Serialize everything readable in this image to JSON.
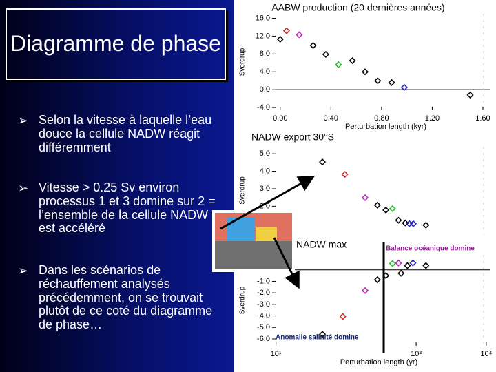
{
  "slide": {
    "title": "Diagramme de phase",
    "bullets": [
      "Selon la vitesse à laquelle l’eau douce la cellule NADW réagit différemment",
      "Vitesse > 0.25 Sv environ processus 1 et 3 domine sur 2 = l’ensemble de la cellule NADW est accéléré",
      "Dans les scénarios de réchauffement analysés précédemment, on se trouvait plutôt de ce coté du diagramme de phase…"
    ]
  },
  "chart_data": [
    {
      "type": "scatter",
      "title": "AABW production (20 dernières années)",
      "x_label": "Perturbation length (kyr)",
      "y_label": "Sverdrup",
      "x": [
        0.0,
        0.05,
        0.15,
        0.26,
        0.36,
        0.46,
        0.57,
        0.67,
        0.77,
        0.88,
        0.98,
        1.5
      ],
      "values": [
        11.3,
        13.2,
        12.3,
        9.9,
        7.9,
        5.6,
        6.5,
        4.0,
        2.0,
        1.6,
        0.5,
        -1.2
      ],
      "colors": [
        "#000",
        "#d02020",
        "#c020c0",
        "#000",
        "#000",
        "#20c020",
        "#000",
        "#000",
        "#000",
        "#000",
        "#2020c0",
        "#000"
      ],
      "xlim": [
        -0.2,
        1.66
      ],
      "ylim": [
        -4.6,
        17
      ],
      "xticks": [
        {
          "value": 0,
          "label": "0.00"
        },
        {
          "value": 0.4,
          "label": "0.40"
        },
        {
          "value": 0.8,
          "label": "0.80"
        },
        {
          "value": 1.2,
          "label": "1.20"
        },
        {
          "value": 1.6,
          "label": "1.60"
        }
      ],
      "yticks": [
        {
          "value": 16,
          "label": "16.0"
        },
        {
          "value": 12,
          "label": "12.0"
        },
        {
          "value": 8,
          "label": "8.0"
        },
        {
          "value": 4,
          "label": "4.0"
        },
        {
          "value": 0,
          "label": "0.0"
        },
        {
          "value": -4,
          "label": "-4.0"
        }
      ],
      "zero_line": true,
      "log_x": false
    },
    {
      "type": "scatter",
      "title": "NADW export 30°S",
      "y_label": "Sverdrup",
      "x": [
        46,
        96,
        187,
        280,
        370,
        460,
        560,
        700,
        800,
        910,
        1380
      ],
      "values": [
        4.53,
        3.82,
        2.49,
        2.06,
        1.78,
        1.86,
        1.2,
        1.04,
        1.0,
        1.0,
        0.92
      ],
      "colors": [
        "#000",
        "#d02020",
        "#c020c0",
        "#000",
        "#000",
        "#20c020",
        "#000",
        "#000",
        "#2020c0",
        "#2020c0",
        "#000"
      ],
      "xlim": [
        5,
        11500
      ],
      "ylim": [
        0.4,
        5.4
      ],
      "yticks": [
        {
          "value": 5,
          "label": "5.0"
        },
        {
          "value": 4,
          "label": "4.0"
        },
        {
          "value": 3,
          "label": "3.0"
        },
        {
          "value": 2,
          "label": "2.0"
        }
      ],
      "zero_line": false,
      "log_x": true
    },
    {
      "type": "scatter",
      "title": "NADW max",
      "x_label": "Perturbation length (yr)",
      "y_label": "Sverdrup",
      "annotations": [
        "Balance océanique domine",
        "Anomalie salinité domine"
      ],
      "x": [
        460,
        560,
        370,
        610,
        750,
        900,
        1380,
        280,
        187,
        90,
        46
      ],
      "values": [
        0.55,
        0.6,
        -0.5,
        -0.3,
        0.37,
        0.6,
        0.37,
        -0.86,
        -1.8,
        -4.05,
        -5.6
      ],
      "colors": [
        "#20c020",
        "#c020c0",
        "#000",
        "#000",
        "#000",
        "#2020c0",
        "#000",
        "#000",
        "#c020c0",
        "#d02020",
        "#000"
      ],
      "xlim": [
        5,
        11500
      ],
      "ylim": [
        -6.6,
        1.3
      ],
      "xticks": [
        {
          "value": 10,
          "label": "10¹"
        },
        {
          "value": 1000,
          "label": "10³"
        },
        {
          "value": 10000,
          "label": "10⁴"
        }
      ],
      "yticks": [
        {
          "value": -1,
          "label": "-1.0"
        },
        {
          "value": -2,
          "label": "-2.0"
        },
        {
          "value": -3,
          "label": "-3.0"
        },
        {
          "value": -4,
          "label": "-4.0"
        },
        {
          "value": -5,
          "label": "-5.0"
        },
        {
          "value": -6,
          "label": "-6.0"
        }
      ],
      "zero_line": true,
      "log_x": true
    }
  ]
}
